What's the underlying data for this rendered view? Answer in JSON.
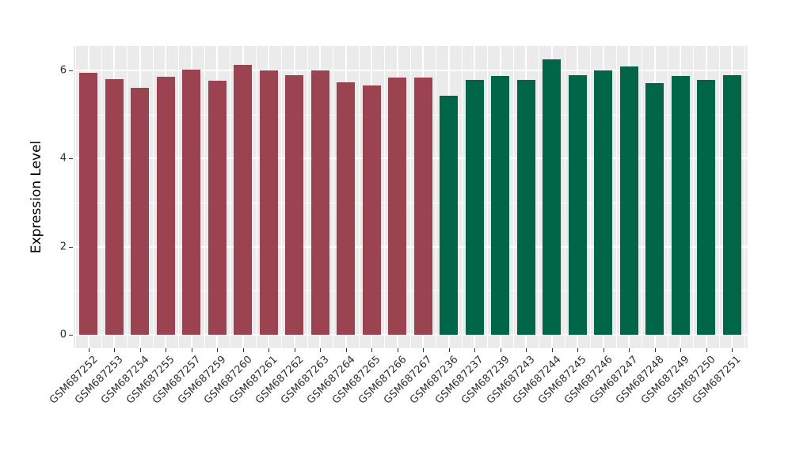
{
  "chart_data": {
    "type": "bar",
    "title": "",
    "xlabel": "",
    "ylabel": "Expression Level",
    "categories": [
      "GSM687252",
      "GSM687253",
      "GSM687254",
      "GSM687255",
      "GSM687257",
      "GSM687259",
      "GSM687260",
      "GSM687261",
      "GSM687262",
      "GSM687263",
      "GSM687264",
      "GSM687265",
      "GSM687266",
      "GSM687267",
      "GSM687236",
      "GSM687237",
      "GSM687239",
      "GSM687243",
      "GSM687244",
      "GSM687245",
      "GSM687246",
      "GSM687247",
      "GSM687248",
      "GSM687249",
      "GSM687250",
      "GSM687251"
    ],
    "values": [
      5.95,
      5.8,
      5.6,
      5.86,
      6.02,
      5.77,
      6.13,
      6.01,
      5.89,
      6.0,
      5.74,
      5.67,
      5.84,
      5.85,
      5.42,
      5.79,
      5.87,
      5.78,
      6.26,
      5.9,
      6.01,
      6.09,
      5.71,
      5.88,
      5.78,
      5.9
    ],
    "bar_group": [
      "group1",
      "group1",
      "group1",
      "group1",
      "group1",
      "group1",
      "group1",
      "group1",
      "group1",
      "group1",
      "group1",
      "group1",
      "group1",
      "group1",
      "group2",
      "group2",
      "group2",
      "group2",
      "group2",
      "group2",
      "group2",
      "group2",
      "group2",
      "group2",
      "group2",
      "group2"
    ],
    "group_colors": {
      "group1": "#9b4351",
      "group2": "#016648"
    },
    "yticks": [
      0,
      2,
      4,
      6
    ],
    "yticks_minor": [
      1,
      3,
      5
    ],
    "ylim": [
      0,
      6.56
    ],
    "legend_position": "none",
    "grid": true,
    "plot_bg_color": "#ebebeb",
    "grid_color": "#ffffff"
  }
}
